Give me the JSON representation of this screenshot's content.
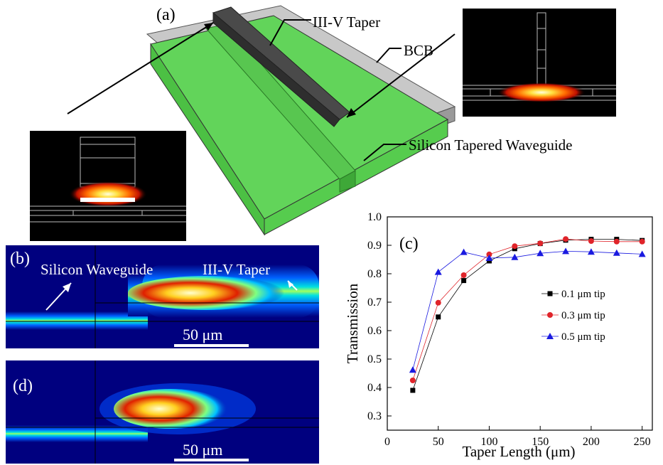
{
  "panel_a": {
    "label": "(a)",
    "labels": {
      "taper": "III-V Taper",
      "bcb": "BCB",
      "si_wg": "Silicon Tapered Waveguide"
    }
  },
  "panel_b": {
    "label": "(b)",
    "left_text": "Silicon  Waveguide",
    "right_text": "III-V Taper",
    "scalebar": "50 μm"
  },
  "panel_d": {
    "label": "(d)",
    "scalebar": "50 μm"
  },
  "colors": {
    "green": "#62d45a",
    "green_dark": "#2f9a2a",
    "taper": "#4a4a4a",
    "sq": "#000000",
    "circle": "#e0242a",
    "triangle": "#1a1ae0",
    "field_bg": "#00007f"
  },
  "chart_data": {
    "type": "line",
    "panel_label": "(c)",
    "xlabel": "Taper Length (μm)",
    "ylabel": "Transmission",
    "xlim": [
      0,
      260
    ],
    "ylim": [
      0.25,
      1.0
    ],
    "xticks": [
      0,
      50,
      100,
      150,
      200,
      250
    ],
    "yticks": [
      0.3,
      0.4,
      0.5,
      0.6,
      0.7,
      0.8,
      0.9,
      1.0
    ],
    "x": [
      25,
      50,
      75,
      100,
      125,
      150,
      175,
      200,
      225,
      250
    ],
    "series": [
      {
        "name": "0.1 μm tip",
        "marker": "square",
        "values": [
          0.39,
          0.648,
          0.776,
          0.845,
          0.888,
          0.906,
          0.918,
          0.921,
          0.921,
          0.917
        ]
      },
      {
        "name": "0.3 μm tip",
        "marker": "circle",
        "values": [
          0.425,
          0.698,
          0.795,
          0.868,
          0.897,
          0.907,
          0.922,
          0.915,
          0.913,
          0.913
        ]
      },
      {
        "name": "0.5 μm tip",
        "marker": "triangle",
        "values": [
          0.462,
          0.806,
          0.876,
          0.855,
          0.858,
          0.872,
          0.879,
          0.877,
          0.873,
          0.869
        ]
      }
    ],
    "legend_position": "center-right"
  }
}
